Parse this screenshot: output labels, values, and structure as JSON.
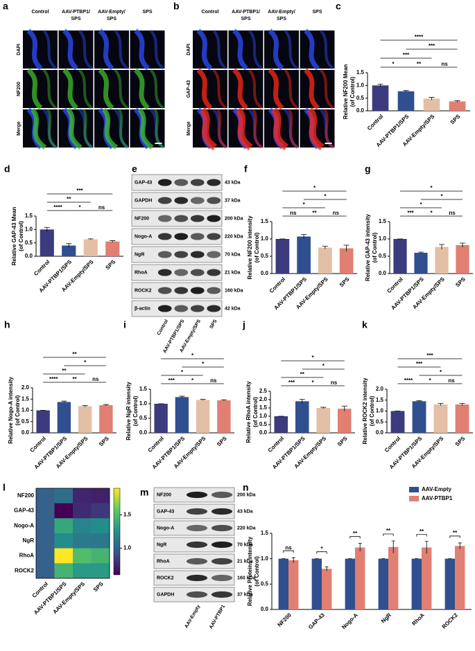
{
  "chart_data": [
    {
      "panel": "c",
      "type": "bar",
      "categories": [
        "Control",
        "AAV-PTBP1/SPS",
        "AAV-Empty/SPS",
        "SPS"
      ],
      "values": [
        1.0,
        0.77,
        0.48,
        0.37
      ],
      "errors": [
        0.05,
        0.03,
        0.05,
        0.03
      ],
      "colors": [
        "#3b3b7d",
        "#2f4f8f",
        "#e3bfa5",
        "#e07f72"
      ],
      "ylabel": [
        "Relative NF200 Mean",
        "(of Control)"
      ],
      "ylim": [
        0,
        1.5
      ],
      "yticks": [
        {
          "value": 0,
          "label": "0.0"
        },
        0.5,
        {
          "value": 1,
          "label": "1.0"
        },
        1.5
      ],
      "significance": [
        {
          "label": "****",
          "pair": [
            0,
            3
          ]
        },
        {
          "label": "***",
          "pair": [
            1,
            3
          ]
        },
        {
          "label": "***",
          "pair": [
            0,
            2
          ]
        },
        {
          "label": "*",
          "pair": [
            0,
            1
          ]
        },
        {
          "label": "**",
          "pair": [
            1,
            2
          ]
        },
        {
          "label": "ns",
          "pair": [
            2,
            3
          ]
        }
      ]
    },
    {
      "panel": "d",
      "type": "bar",
      "categories": [
        "Control",
        "AAV-PTBP1/SPS",
        "AAV-Empty/SPS",
        "SPS"
      ],
      "values": [
        1.0,
        0.4,
        0.63,
        0.55
      ],
      "errors": [
        0.08,
        0.07,
        0.02,
        0.03
      ],
      "colors": [
        "#3b3b7d",
        "#2f4f8f",
        "#e3bfa5",
        "#e07f72"
      ],
      "ylabel": [
        "Relative GAP-43 Mean",
        "(of Control)"
      ],
      "ylim": [
        0,
        1.5
      ],
      "yticks": [
        {
          "value": 0,
          "label": "0.0"
        },
        0.5,
        {
          "value": 1,
          "label": "1.0"
        },
        1.5
      ],
      "significance": [
        {
          "label": "***",
          "pair": [
            0,
            3
          ]
        },
        {
          "label": "**",
          "pair": [
            0,
            2
          ]
        },
        {
          "label": "****",
          "pair": [
            0,
            1
          ]
        },
        {
          "label": "*",
          "pair": [
            1,
            2
          ]
        },
        {
          "label": "ns",
          "pair": [
            2,
            3
          ]
        }
      ]
    },
    {
      "panel": "f",
      "type": "bar",
      "categories": [
        "Control",
        "AAV-PTBP1/SPS",
        "AAV-Empty/SPS",
        "SPS"
      ],
      "values": [
        1.0,
        1.07,
        0.75,
        0.73
      ],
      "errors": [
        0,
        0.06,
        0.04,
        0.09
      ],
      "colors": [
        "#3b3b7d",
        "#2f4f8f",
        "#e3bfa5",
        "#e07f72"
      ],
      "ylabel": [
        "Relative NF200 intensity",
        "(of Control)"
      ],
      "ylim": [
        0,
        1.5
      ],
      "yticks": [
        {
          "value": 0,
          "label": "0.0"
        },
        0.5,
        {
          "value": 1,
          "label": "1.0"
        },
        1.5
      ],
      "significance": [
        {
          "label": "*",
          "pair": [
            0,
            3
          ]
        },
        {
          "label": "*",
          "pair": [
            1,
            3
          ]
        },
        {
          "label": "*",
          "pair": [
            0,
            2
          ]
        },
        {
          "label": "ns",
          "pair": [
            0,
            1
          ]
        },
        {
          "label": "**",
          "pair": [
            1,
            2
          ]
        },
        {
          "label": "ns",
          "pair": [
            2,
            3
          ]
        }
      ]
    },
    {
      "panel": "g",
      "type": "bar",
      "categories": [
        "Control",
        "AAV-PTBP1/SPS",
        "AAV-Empty/SPS",
        "SPS"
      ],
      "values": [
        1.0,
        0.6,
        0.77,
        0.82
      ],
      "errors": [
        0,
        0.02,
        0.07,
        0.06
      ],
      "colors": [
        "#3b3b7d",
        "#2f4f8f",
        "#e3bfa5",
        "#e07f72"
      ],
      "ylabel": [
        "Relative GAP-43 intensity",
        "(of Control)"
      ],
      "ylim": [
        0,
        1.5
      ],
      "yticks": [
        {
          "value": 0,
          "label": "0.0"
        },
        0.5,
        {
          "value": 1,
          "label": "1.0"
        },
        1.5
      ],
      "significance": [
        {
          "label": "*",
          "pair": [
            0,
            3
          ]
        },
        {
          "label": "*",
          "pair": [
            1,
            3
          ]
        },
        {
          "label": "*",
          "pair": [
            0,
            2
          ]
        },
        {
          "label": "***",
          "pair": [
            0,
            1
          ]
        },
        {
          "label": "*",
          "pair": [
            1,
            2
          ]
        },
        {
          "label": "ns",
          "pair": [
            2,
            3
          ]
        }
      ]
    },
    {
      "panel": "h",
      "type": "bar",
      "categories": [
        "Control",
        "AAV-PTBP1/SPS",
        "AAV-Empty/SPS",
        "SPS"
      ],
      "values": [
        1.0,
        1.37,
        1.18,
        1.23
      ],
      "errors": [
        0,
        0.04,
        0.03,
        0.03
      ],
      "colors": [
        "#3b3b7d",
        "#2f4f8f",
        "#e3bfa5",
        "#e07f72"
      ],
      "ylabel": [
        "Relative Nogo-A intensity",
        "(of Control)"
      ],
      "ylim": [
        0,
        2
      ],
      "yticks": [
        {
          "value": 0,
          "label": "0.0"
        },
        0.5,
        {
          "value": 1,
          "label": "1.0"
        },
        1.5,
        {
          "value": 2,
          "label": "2.0"
        }
      ],
      "significance": [
        {
          "label": "**",
          "pair": [
            0,
            3
          ]
        },
        {
          "label": "*",
          "pair": [
            1,
            3
          ]
        },
        {
          "label": "**",
          "pair": [
            0,
            2
          ]
        },
        {
          "label": "****",
          "pair": [
            0,
            1
          ]
        },
        {
          "label": "**",
          "pair": [
            1,
            2
          ]
        },
        {
          "label": "ns",
          "pair": [
            2,
            3
          ]
        }
      ]
    },
    {
      "panel": "i",
      "type": "bar",
      "categories": [
        "Control",
        "AAV-PTBP1/SPS",
        "AAV-Empty/SPS",
        "SPS"
      ],
      "values": [
        1.0,
        1.23,
        1.13,
        1.12
      ],
      "errors": [
        0,
        0.03,
        0.02,
        0.02
      ],
      "colors": [
        "#3b3b7d",
        "#2f4f8f",
        "#e3bfa5",
        "#e07f72"
      ],
      "ylabel": [
        "Relative NgR intensity",
        "(of Control)"
      ],
      "ylim": [
        0,
        1.5
      ],
      "yticks": [
        {
          "value": 0,
          "label": "0.0"
        },
        0.5,
        {
          "value": 1,
          "label": "1.0"
        },
        1.5
      ],
      "significance": [
        {
          "label": "*",
          "pair": [
            0,
            3
          ]
        },
        {
          "label": "*",
          "pair": [
            1,
            3
          ]
        },
        {
          "label": "*",
          "pair": [
            0,
            2
          ]
        },
        {
          "label": "***",
          "pair": [
            0,
            1
          ]
        },
        {
          "label": "*",
          "pair": [
            1,
            2
          ]
        },
        {
          "label": "ns",
          "pair": [
            2,
            3
          ]
        }
      ]
    },
    {
      "panel": "j",
      "type": "bar",
      "categories": [
        "Control",
        "AAV-PTBP1/SPS",
        "AAV-Empty/SPS",
        "SPS"
      ],
      "values": [
        1.0,
        1.9,
        1.5,
        1.45
      ],
      "errors": [
        0,
        0.12,
        0.04,
        0.15
      ],
      "colors": [
        "#3b3b7d",
        "#2f4f8f",
        "#e3bfa5",
        "#e07f72"
      ],
      "ylabel": [
        "Relative RhoA intensity",
        "(of Control)"
      ],
      "ylim": [
        0,
        2.5
      ],
      "yticks": [
        {
          "value": 0,
          "label": "0.0"
        },
        0.5,
        {
          "value": 1,
          "label": "1.0"
        },
        1.5,
        {
          "value": 2,
          "label": "2.0"
        },
        2.5
      ],
      "significance": [
        {
          "label": "*",
          "pair": [
            0,
            3
          ]
        },
        {
          "label": "*",
          "pair": [
            1,
            3
          ]
        },
        {
          "label": "**",
          "pair": [
            0,
            2
          ]
        },
        {
          "label": "***",
          "pair": [
            0,
            1
          ]
        },
        {
          "label": "*",
          "pair": [
            1,
            2
          ]
        },
        {
          "label": "ns",
          "pair": [
            2,
            3
          ]
        }
      ]
    },
    {
      "panel": "k",
      "type": "bar",
      "categories": [
        "Control",
        "AAV-PTBP1/SPS",
        "AAV-Empty/SPS",
        "SPS"
      ],
      "values": [
        1.0,
        1.45,
        1.3,
        1.3
      ],
      "errors": [
        0,
        0.02,
        0.05,
        0.05
      ],
      "colors": [
        "#3b3b7d",
        "#2f4f8f",
        "#e3bfa5",
        "#e07f72"
      ],
      "ylabel": [
        "Relative ROCK2 intensity",
        "(of Control)"
      ],
      "ylim": [
        0,
        2
      ],
      "yticks": [
        {
          "value": 0,
          "label": "0.0"
        },
        0.5,
        {
          "value": 1,
          "label": "1.0"
        },
        1.5,
        {
          "value": 2,
          "label": "2.0"
        }
      ],
      "significance": [
        {
          "label": "***",
          "pair": [
            0,
            3
          ]
        },
        {
          "label": "***",
          "pair": [
            0,
            2
          ]
        },
        {
          "label": "*",
          "pair": [
            1,
            3
          ]
        },
        {
          "label": "****",
          "pair": [
            0,
            1
          ]
        },
        {
          "label": "*",
          "pair": [
            1,
            2
          ]
        },
        {
          "label": "ns",
          "pair": [
            2,
            3
          ]
        }
      ]
    },
    {
      "panel": "l",
      "type": "heatmap",
      "rows": [
        "NF200",
        "GAP-43",
        "Nogo-A",
        "NgR",
        "RhoA",
        "ROCK2"
      ],
      "columns": [
        "Control",
        "AAV-PTBP1/SPS",
        "AAV-Empty/SPS",
        "SPS"
      ],
      "values": [
        [
          1.0,
          1.07,
          0.75,
          0.73
        ],
        [
          1.0,
          0.6,
          0.77,
          0.82
        ],
        [
          1.0,
          1.37,
          1.18,
          1.23
        ],
        [
          1.0,
          1.23,
          1.13,
          1.12
        ],
        [
          1.0,
          1.9,
          1.5,
          1.45
        ],
        [
          1.0,
          1.45,
          1.3,
          1.3
        ]
      ],
      "zlim": [
        0.6,
        1.9
      ],
      "zticks": [
        {
          "value": 1,
          "label": "1.0"
        },
        1.5
      ]
    },
    {
      "panel": "n",
      "type": "bar",
      "categories": [
        "NF200",
        "GAP-43",
        "Nogo-A",
        "NgR",
        "RhoA",
        "ROCK2"
      ],
      "series": [
        {
          "name": "AAV-Empty",
          "color": "#2f4f8f",
          "values": [
            1,
            1,
            1,
            1,
            1,
            1
          ],
          "errors": [
            0,
            0,
            0,
            0,
            0,
            0
          ]
        },
        {
          "name": "AAV-PTBP1",
          "color": "#e07f72",
          "values": [
            0.97,
            0.8,
            1.22,
            1.23,
            1.22,
            1.25
          ],
          "errors": [
            0.05,
            0.04,
            0.08,
            0.12,
            0.12,
            0.06
          ]
        }
      ],
      "ylabel": [
        "Relative Proteins intensity",
        "(of Control)"
      ],
      "ylim": [
        0,
        1.5
      ],
      "yticks": [
        {
          "value": 0,
          "label": "0.0"
        },
        0.5,
        {
          "value": 1,
          "label": "1.0"
        },
        1.5
      ],
      "significance": [
        "ns",
        "*",
        "**",
        "**",
        "**",
        "**"
      ],
      "legend": "top-right"
    }
  ],
  "images": [
    {
      "panel": "a",
      "columns": [
        [
          "Control"
        ],
        [
          "AAV-PTBP1/",
          "SPS"
        ],
        [
          "AAV-Empty/",
          "SPS"
        ],
        [
          "SPS"
        ]
      ],
      "rows": [
        {
          "name": "DAPI",
          "color": "#2f4fff"
        },
        {
          "name": "NF200",
          "color": "#3fbf2f"
        },
        {
          "name": "Merge",
          "color": "#000000"
        }
      ]
    },
    {
      "panel": "b",
      "columns": [
        [
          "Control"
        ],
        [
          "AAV-PTBP1/",
          "SPS"
        ],
        [
          "AAV-Empty/",
          "SPS"
        ],
        [
          "SPS"
        ]
      ],
      "rows": [
        {
          "name": "DAPI",
          "color": "#2f4fff"
        },
        {
          "name": "GAP-43",
          "color": "#ff2a1a"
        },
        {
          "name": "Merge",
          "color": "#000000"
        }
      ]
    }
  ],
  "blots": [
    {
      "panel": "e",
      "lanes": [
        "Control",
        "AAV-PTBP1/SPS",
        "AAV-Empty/SPS",
        "SPS"
      ],
      "bands": [
        {
          "name": "GAP-43",
          "size": "43 kDa"
        },
        {
          "name": "GAPDH",
          "size": "37 kDa"
        },
        {
          "name": "NF200",
          "size": "200 kDa"
        },
        {
          "name": "Nogo-A",
          "size": "220 kDa"
        },
        {
          "name": "NgR",
          "size": "70 kDa"
        },
        {
          "name": "RhoA",
          "size": "21 kDa"
        },
        {
          "name": "ROCK2",
          "size": "160 kDa"
        },
        {
          "name": "β-actin",
          "size": "42 kDa"
        }
      ]
    },
    {
      "panel": "m",
      "lanes": [
        "AAV-Empty",
        "AAV-PTBP1"
      ],
      "bands": [
        {
          "name": "NF200",
          "size": "200 kDa"
        },
        {
          "name": "GAP-43",
          "size": "43 kDa"
        },
        {
          "name": "Nogo-A",
          "size": "220 kDa"
        },
        {
          "name": "NgR",
          "size": "70 kDa"
        },
        {
          "name": "RhoA",
          "size": "21 kDa"
        },
        {
          "name": "ROCK2",
          "size": "160 kDa"
        },
        {
          "name": "GAPDH",
          "size": "37 kDa"
        }
      ]
    }
  ]
}
